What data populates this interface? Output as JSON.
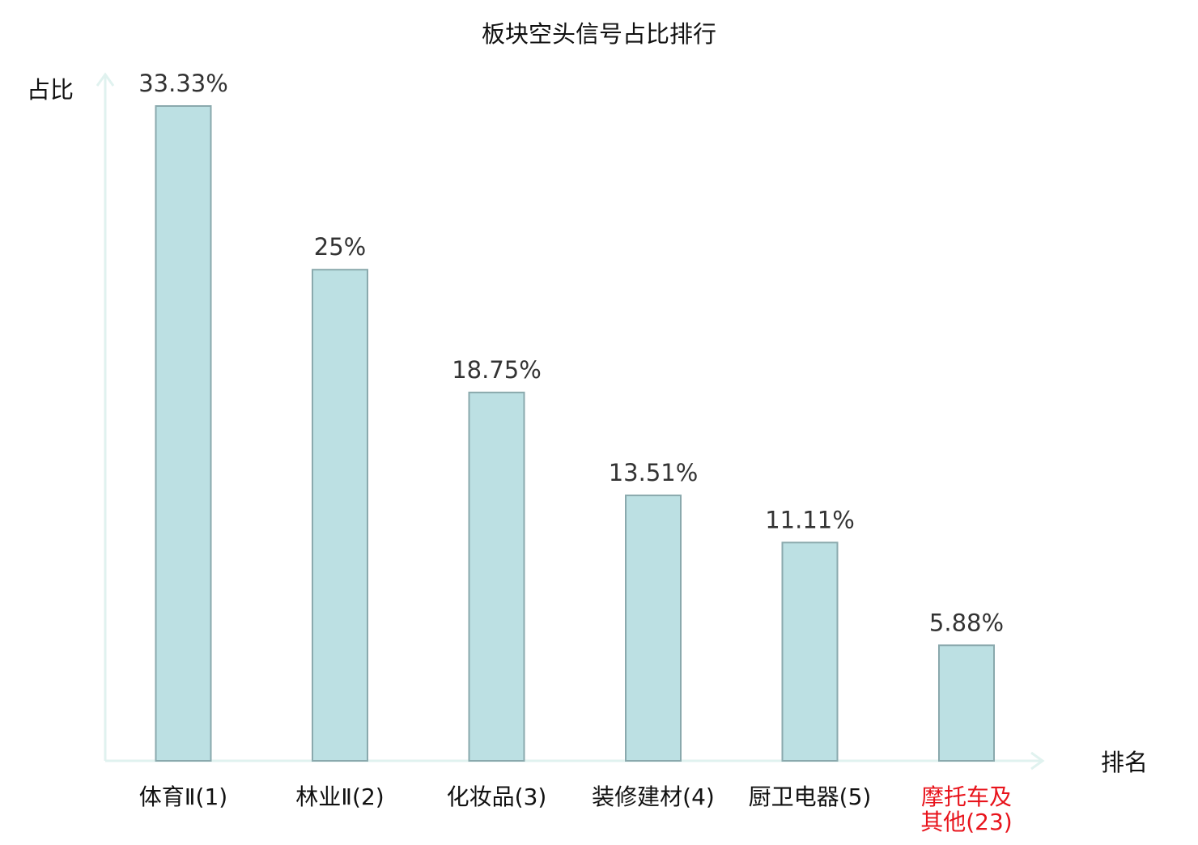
{
  "chart_data": {
    "type": "bar",
    "title": "板块空头信号占比排行",
    "ylabel": "占比",
    "xlabel": "排名",
    "categories": [
      [
        "体育Ⅱ(1)"
      ],
      [
        "林业Ⅱ(2)"
      ],
      [
        "化妆品(3)"
      ],
      [
        "装修建材(4)"
      ],
      [
        "厨卫电器(5)"
      ],
      [
        "摩托车及",
        "其他(23)"
      ]
    ],
    "values": [
      33.33,
      25,
      18.75,
      13.51,
      11.11,
      5.88
    ],
    "value_labels": [
      "33.33%",
      "25%",
      "18.75%",
      "13.51%",
      "11.11%",
      "5.88%"
    ],
    "highlight_index": 5,
    "ylim": [
      0,
      33.33
    ],
    "grid": false,
    "colors": {
      "bar_fill": "#bce0e3",
      "bar_stroke": "#8aa9ad",
      "axis": "#e0f2ef",
      "text": "#333333",
      "title": "#111111",
      "highlight": "#e8141c"
    }
  }
}
